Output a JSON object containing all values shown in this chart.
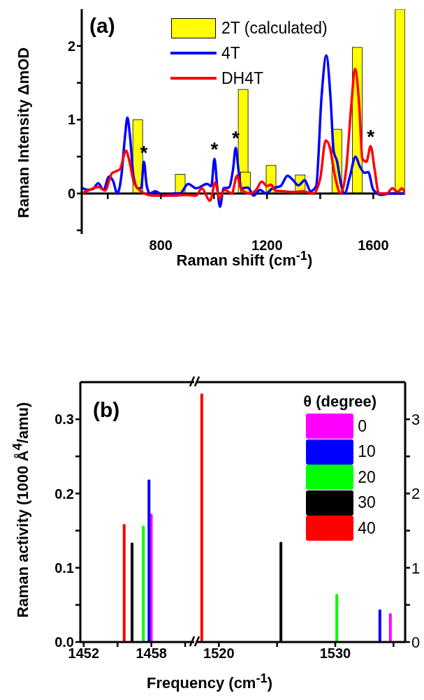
{
  "chart_data": [
    {
      "type": "line",
      "title": "(a)",
      "xlabel": "Raman shift (cm$^{-1}$)",
      "ylabel": "Raman Intensity ΔmOD",
      "xlim": [
        502,
        1720
      ],
      "ylim": [
        -0.55,
        2.5
      ],
      "xticks": [
        {
          "value": 600,
          "label": null
        },
        800,
        {
          "value": 1000,
          "label": null
        },
        1200,
        {
          "value": 1400,
          "label": null
        },
        1600
      ],
      "yticks": [
        {
          "value": -0.5,
          "label": null
        },
        0,
        {
          "value": 0.5,
          "label": null
        },
        1,
        {
          "value": 1.5,
          "label": null
        },
        2
      ],
      "legend": "top",
      "annotations": [
        {
          "text": "*",
          "x": 736,
          "y": 0.43
        },
        {
          "text": "*",
          "x": 1002,
          "y": 0.47
        },
        {
          "text": "*",
          "x": 1082,
          "y": 0.62
        },
        {
          "text": "*",
          "x": 1590,
          "y": 0.64
        }
      ],
      "series": [
        {
          "name": "2T (calculated)",
          "type": "bar",
          "color": "#ffff00",
          "x": [
            713,
            873,
            1110,
            1119,
            1215,
            1325,
            1463,
            1540,
            1701
          ],
          "values": [
            1.0,
            0.26,
            1.41,
            0.29,
            0.38,
            0.25,
            0.87,
            1.98,
            2.5
          ]
        },
        {
          "name": "4T",
          "color": "#0000ff",
          "x": [
            502,
            523,
            544,
            564,
            584,
            605,
            620,
            636,
            651,
            665,
            674,
            684,
            697,
            713,
            726,
            736,
            747,
            759,
            779,
            810,
            851,
            872,
            903,
            933,
            974,
            990,
            1002,
            1012,
            1023,
            1036,
            1056,
            1072,
            1082,
            1092,
            1103,
            1128,
            1149,
            1174,
            1195,
            1221,
            1251,
            1277,
            1298,
            1318,
            1342,
            1364,
            1385,
            1405,
            1423,
            1439,
            1451,
            1464,
            1476,
            1492,
            1512,
            1533,
            1549,
            1567,
            1581,
            1600,
            1630,
            1661,
            1692,
            1720
          ],
          "values": [
            0.08,
            0.05,
            0.06,
            0.14,
            0.05,
            0.23,
            0.17,
            0,
            0.23,
            0.77,
            1.03,
            0.77,
            0.23,
            0.07,
            0.07,
            0.43,
            0.1,
            0,
            0.03,
            -0.03,
            0,
            0,
            0.13,
            0.07,
            0.13,
            0.1,
            0.47,
            0.1,
            -0.18,
            0.07,
            0.08,
            0.33,
            0.62,
            0.33,
            0.07,
            0.08,
            -0.03,
            0.05,
            0,
            0.07,
            0.1,
            0.24,
            0.18,
            0.11,
            0.18,
            0.03,
            0.1,
            1.3,
            1.87,
            1.3,
            0.57,
            0.43,
            0.17,
            0,
            0.23,
            0.5,
            0.37,
            0.28,
            0.29,
            0.05,
            -0.02,
            0,
            0,
            0
          ]
        },
        {
          "name": "DH4T",
          "color": "#ff0000",
          "x": [
            502,
            533,
            564,
            590,
            615,
            631,
            646,
            669,
            682,
            697,
            713,
            738,
            769,
            810,
            851,
            892,
            933,
            954,
            985,
            1005,
            1021,
            1041,
            1067,
            1087,
            1103,
            1138,
            1159,
            1180,
            1200,
            1215,
            1231,
            1262,
            1303,
            1333,
            1374,
            1400,
            1421,
            1436,
            1456,
            1477,
            1497,
            1518,
            1531,
            1547,
            1559,
            1574,
            1590,
            1605,
            1621,
            1651,
            1672,
            1692,
            1708,
            1720
          ],
          "values": [
            0,
            0.05,
            0.09,
            0.04,
            0.27,
            0.3,
            0.33,
            0.58,
            0.43,
            0.17,
            0.07,
            0,
            -0.03,
            -0.03,
            -0.03,
            -0.02,
            -0.03,
            0.07,
            -0.1,
            0.15,
            -0.07,
            0.05,
            0,
            0.24,
            0.05,
            0,
            0.05,
            0.16,
            0.1,
            0.12,
            0.04,
            0.03,
            0.02,
            0.03,
            0,
            0.2,
            0.72,
            0.63,
            0.23,
            0,
            0.3,
            1.23,
            1.69,
            1.2,
            0.47,
            0.43,
            0.64,
            0.33,
            0,
            0,
            0.07,
            0.02,
            0.07,
            0
          ]
        }
      ]
    },
    {
      "type": "bar",
      "title": "(b)",
      "xlabel": "Frequency (cm$^{-1}$)",
      "ylabel": "Raman activity (1000 Å$^{4}$/amu)",
      "xlim": [
        1451.7,
        1461.8
      ],
      "ylim": [
        0,
        0.35
      ],
      "xticks": [
        1452,
        {
          "value": 1455,
          "label": null
        },
        1458,
        {
          "value": 1461,
          "label": null
        }
      ],
      "yticks": [
        {
          "value": 0,
          "label": "0.0"
        },
        {
          "value": 0.05,
          "label": null
        },
        0.1,
        {
          "value": 0.15,
          "label": null
        },
        0.2,
        {
          "value": 0.25,
          "label": null
        },
        0.3
      ],
      "series": [
        {
          "color": "#ff00ff",
          "x": [
            1458.0
          ],
          "values": [
            0.173
          ]
        },
        {
          "color": "#0000ff",
          "x": [
            1457.8
          ],
          "values": [
            0.219
          ]
        },
        {
          "color": "#00ff00",
          "x": [
            1457.3
          ],
          "values": [
            0.157
          ]
        },
        {
          "color": "#000000",
          "x": [
            1456.3
          ],
          "values": [
            0.134
          ]
        },
        {
          "color": "#ff0000",
          "x": [
            1455.6
          ],
          "values": [
            0.159
          ]
        }
      ]
    },
    {
      "type": "bar",
      "legend": "top right",
      "legend_title": "θ (degree)",
      "xlim": [
        1518,
        1536
      ],
      "xticks": [
        1520,
        {
          "value": 1525,
          "label": null
        },
        1530,
        {
          "value": 1535,
          "label": null
        }
      ],
      "y2lim": [
        0,
        3.5
      ],
      "y2ticks": [
        0,
        {
          "value": 0.5,
          "label": null
        },
        1,
        {
          "value": 1.5,
          "label": null
        },
        2,
        {
          "value": 2.5,
          "label": null
        },
        3
      ],
      "series": [
        {
          "name": "0",
          "axis": "y2",
          "color": "#ff00ff",
          "x": [
            1534.7
          ],
          "values": [
            0.39
          ]
        },
        {
          "name": "10",
          "axis": "y2",
          "color": "#0000ff",
          "x": [
            1533.8
          ],
          "values": [
            0.44
          ]
        },
        {
          "name": "20",
          "axis": "y2",
          "color": "#00ff00",
          "x": [
            1530.1
          ],
          "values": [
            0.65
          ]
        },
        {
          "name": "30",
          "axis": "y2",
          "color": "#000000",
          "x": [
            1525.3
          ],
          "values": [
            1.35
          ]
        },
        {
          "name": "40",
          "axis": "y2",
          "color": "#ff0000",
          "x": [
            1518.5
          ],
          "values": [
            3.35
          ]
        }
      ]
    }
  ]
}
